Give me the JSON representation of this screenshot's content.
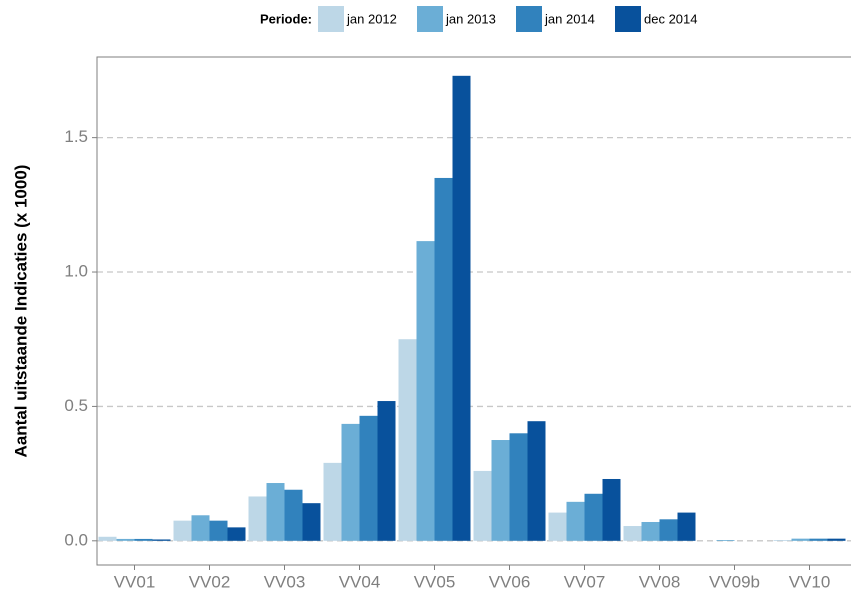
{
  "chart_data": {
    "type": "bar",
    "legend_title": "Periode:",
    "y_label": "Aantal uitstaande Indicaties (x 1000)",
    "categories": [
      "VV01",
      "VV02",
      "VV03",
      "VV04",
      "VV05",
      "VV06",
      "VV07",
      "VV08",
      "VV09b",
      "VV10"
    ],
    "series": [
      {
        "name": "jan 2012",
        "color": "#bdd7e7",
        "values": [
          0.015,
          0.075,
          0.165,
          0.29,
          0.75,
          0.26,
          0.105,
          0.055,
          0,
          0.003
        ]
      },
      {
        "name": "jan 2013",
        "color": "#6baed6",
        "values": [
          0.007,
          0.095,
          0.215,
          0.435,
          1.115,
          0.375,
          0.145,
          0.07,
          0.003,
          0.008
        ]
      },
      {
        "name": "jan 2014",
        "color": "#3182bd",
        "values": [
          0.007,
          0.075,
          0.19,
          0.465,
          1.35,
          0.4,
          0.175,
          0.08,
          0,
          0.008
        ]
      },
      {
        "name": "dec 2014",
        "color": "#08519c",
        "values": [
          0.005,
          0.05,
          0.14,
          0.52,
          1.73,
          0.445,
          0.23,
          0.105,
          0,
          0.008
        ]
      }
    ],
    "ylim": [
      -0.09,
      1.8
    ],
    "yticks": [
      {
        "value": 0,
        "label": "0.0"
      },
      0.5,
      {
        "value": 1,
        "label": "1.0"
      },
      1.5
    ],
    "grid": true,
    "legend_position": "top"
  }
}
